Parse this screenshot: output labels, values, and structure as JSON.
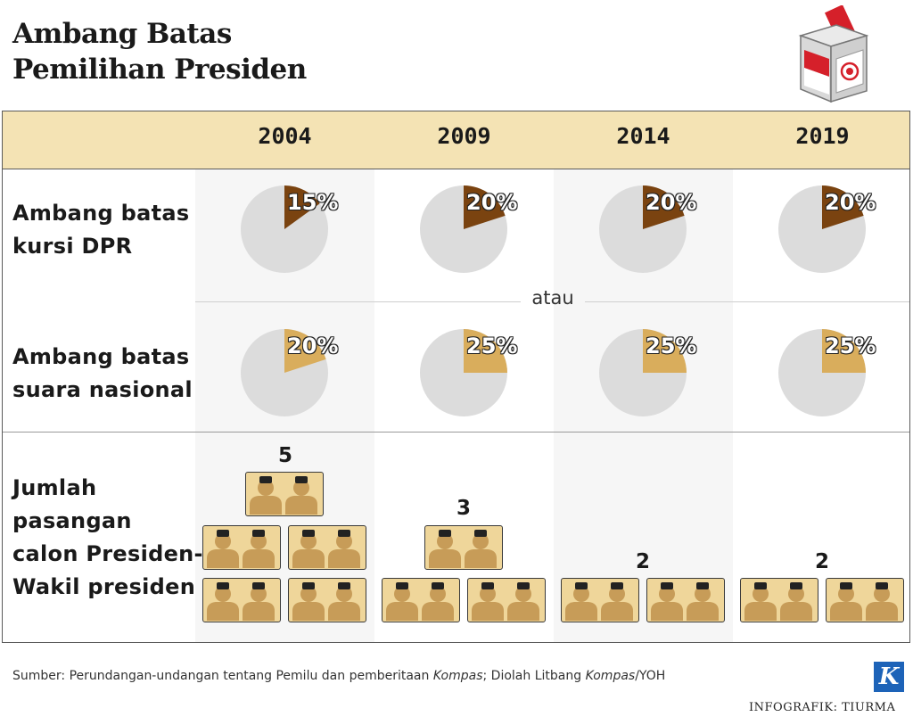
{
  "title": {
    "line1": "Ambang Batas",
    "line2": "Pemilihan Presiden"
  },
  "chart_data": {
    "type": "pie",
    "title": "Ambang Batas Pemilihan Presiden",
    "years": [
      "2004",
      "2009",
      "2014",
      "2019"
    ],
    "series": [
      {
        "name": "Ambang batas kursi DPR",
        "unit": "%",
        "values": [
          15,
          20,
          20,
          20
        ],
        "color": "#7a4310"
      },
      {
        "name": "Ambang batas suara nasional",
        "unit": "%",
        "values": [
          20,
          25,
          25,
          25
        ],
        "color": "#d9ad5c"
      }
    ],
    "pie_background": "#dcdcdc",
    "connector": "atau",
    "candidate_pairs": {
      "name": "Jumlah pasangan calon Presiden-Wakil presiden",
      "values": [
        5,
        3,
        2,
        2
      ]
    }
  },
  "rows": {
    "dpr_label": [
      "Ambang batas",
      "kursi DPR"
    ],
    "suara_label": [
      "Ambang batas",
      "suara nasional"
    ],
    "pairs_label": [
      "Jumlah",
      "pasangan",
      "calon Presiden-",
      "Wakil presiden"
    ]
  },
  "labels": {
    "dpr": [
      "15%",
      "20%",
      "20%",
      "20%"
    ],
    "suara": [
      "20%",
      "25%",
      "25%",
      "25%"
    ],
    "pairs": [
      "5",
      "3",
      "2",
      "2"
    ]
  },
  "footer": {
    "source_prefix": "Sumber: Perundangan-undangan tentang Pemilu dan pemberitaan ",
    "source_kompas1": "Kompas",
    "source_mid": "; Diolah Litbang ",
    "source_kompas2": "Kompas",
    "source_suffix": "/YOH",
    "credit": "INFOGRAFIK: TIURMA",
    "logo_letter": "K"
  },
  "colors": {
    "header_band": "#f4e3b4",
    "card": "#efd69a",
    "figure": "#c79c58",
    "hat": "#222222"
  }
}
